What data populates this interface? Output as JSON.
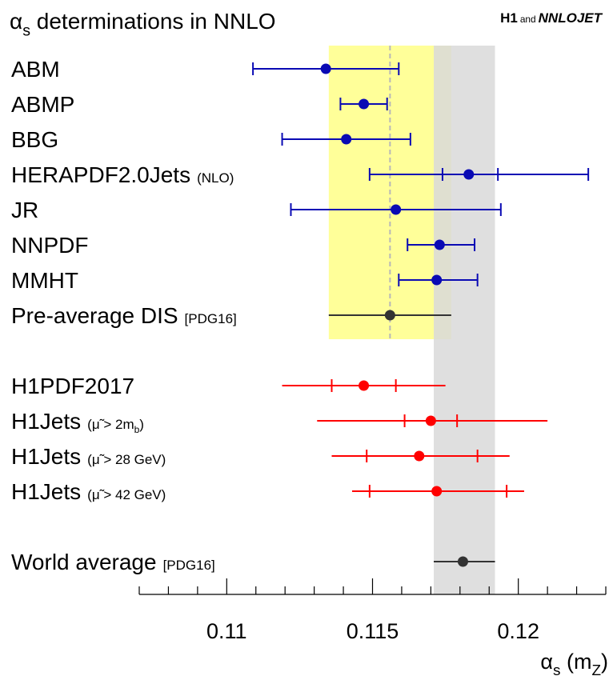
{
  "chart_data": {
    "type": "errorbar",
    "title": [
      {
        "text": "α"
      },
      {
        "sub": "s"
      },
      {
        "text": " determinations in NNLO"
      }
    ],
    "credit": [
      {
        "text": "H1",
        "bold": true
      },
      {
        "text": "and",
        "small": true
      },
      {
        "text": "NNLOJET",
        "bold": true,
        "italic": true
      }
    ],
    "xlabel": [
      {
        "text": "α"
      },
      {
        "sub": "s"
      },
      {
        "text": " (m"
      },
      {
        "sub": "Z"
      },
      {
        "text": ")"
      }
    ],
    "xlim": [
      0.107,
      0.123
    ],
    "xticks": [
      0.11,
      0.115,
      0.12
    ],
    "xminorticks": [
      0.107,
      0.108,
      0.109,
      0.111,
      0.112,
      0.113,
      0.114,
      0.116,
      0.117,
      0.118,
      0.119,
      0.121,
      0.122,
      0.123
    ],
    "bands": [
      {
        "low": 0.1135,
        "high": 0.1177,
        "color": "#ffff99"
      },
      {
        "low": 0.1171,
        "high": 0.1192,
        "color": "#d9d9d9"
      }
    ],
    "reference_line": 0.1156,
    "points": [
      {
        "label": "ABM",
        "color": "#0a0ab4",
        "value": 0.1134,
        "low": 0.1109,
        "high": 0.1159
      },
      {
        "label": "ABMP",
        "color": "#0a0ab4",
        "value": 0.1147,
        "low": 0.1139,
        "high": 0.1155
      },
      {
        "label": "BBG",
        "color": "#0a0ab4",
        "value": 0.1141,
        "low": 0.1119,
        "high": 0.1163
      },
      {
        "label": "HERAPDF2.0Jets",
        "note": [
          {
            "text": "(NLO)"
          }
        ],
        "color": "#0a0ab4",
        "value": 0.1183,
        "low": 0.1149,
        "high": 0.1224,
        "inner_low": 0.1174,
        "inner_high": 0.1193
      },
      {
        "label": "JR",
        "color": "#0a0ab4",
        "value": 0.1158,
        "low": 0.1122,
        "high": 0.1194
      },
      {
        "label": "NNPDF",
        "color": "#0a0ab4",
        "value": 0.1173,
        "low": 0.1162,
        "high": 0.1185
      },
      {
        "label": "MMHT",
        "color": "#0a0ab4",
        "value": 0.1172,
        "low": 0.1159,
        "high": 0.1186
      },
      {
        "label": "Pre-average DIS",
        "note": [
          {
            "text": "[PDG16]"
          }
        ],
        "color": "#333333",
        "value": 0.1156,
        "low": 0.1135,
        "high": 0.1177
      },
      {
        "label": "H1PDF2017",
        "color": "#ff0000",
        "value": 0.1147,
        "low": 0.1119,
        "high": 0.1175,
        "inner_low": 0.1136,
        "inner_high": 0.1158
      },
      {
        "label": "H1Jets",
        "note": [
          {
            "text": "(μ̃ > 2m"
          },
          {
            "sub": "b"
          },
          {
            "text": ")"
          }
        ],
        "color": "#ff0000",
        "value": 0.117,
        "low": 0.1131,
        "high": 0.121,
        "inner_low": 0.1161,
        "inner_high": 0.1179
      },
      {
        "label": "H1Jets",
        "note": [
          {
            "text": "(μ̃ > 28 GeV)"
          }
        ],
        "color": "#ff0000",
        "value": 0.1166,
        "low": 0.1136,
        "high": 0.1197,
        "inner_low": 0.1148,
        "inner_high": 0.1186
      },
      {
        "label": "H1Jets",
        "note": [
          {
            "text": "(μ̃ > 42 GeV)"
          }
        ],
        "color": "#ff0000",
        "value": 0.1172,
        "low": 0.1143,
        "high": 0.1202,
        "inner_low": 0.1149,
        "inner_high": 0.1196
      },
      {
        "label": "World average",
        "note": [
          {
            "text": "[PDG16]"
          }
        ],
        "color": "#333333",
        "value": 0.1181,
        "low": 0.1171,
        "high": 0.1192
      }
    ]
  }
}
